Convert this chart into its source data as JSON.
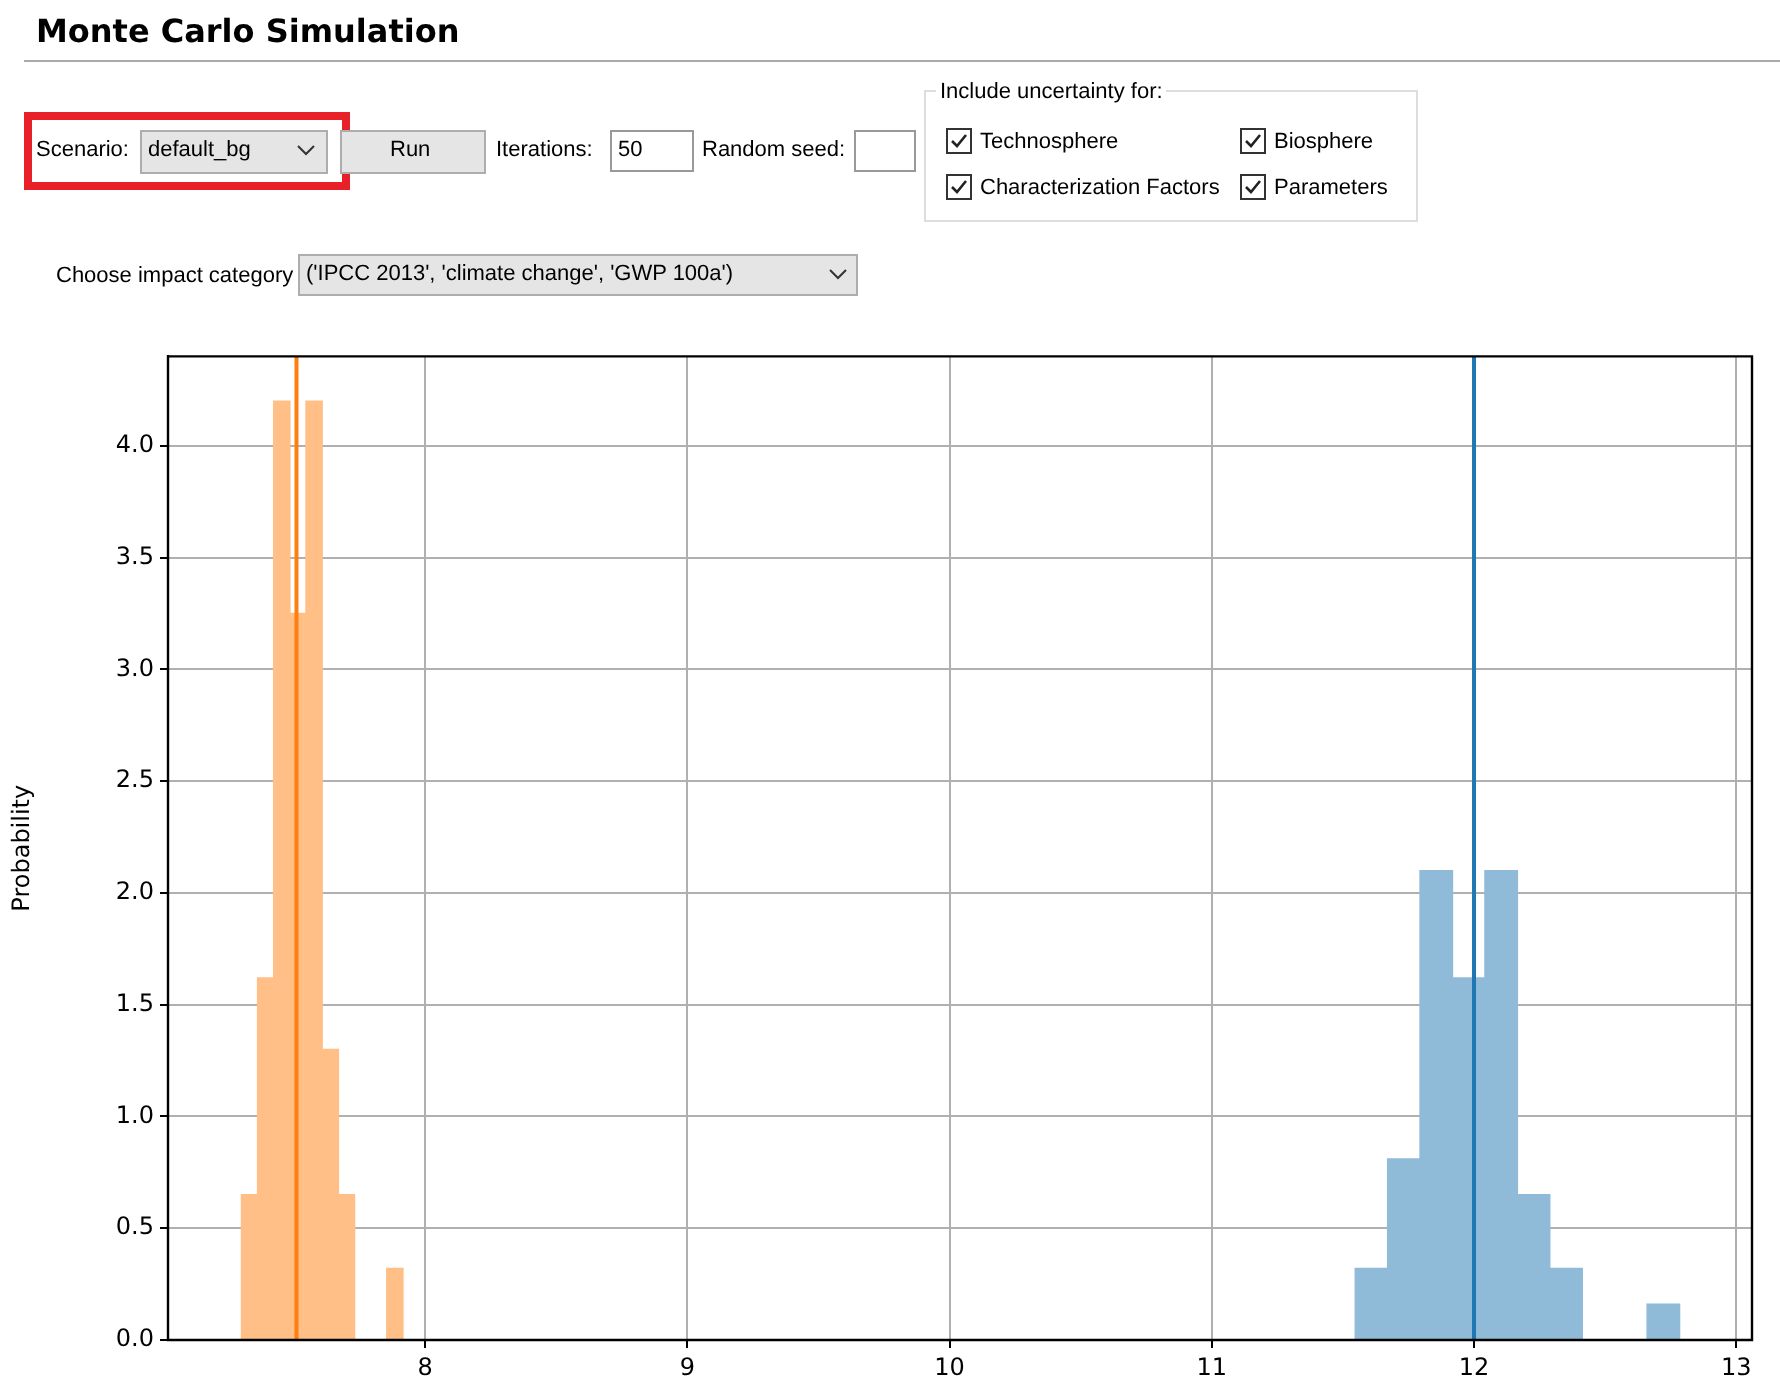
{
  "chart_data": {
    "type": "histogram",
    "title": "Monte Carlo Simulation",
    "ylabel": "Probability",
    "annotations": [
      "Scenario:",
      "default_bg",
      "Run",
      "Iterations:",
      "50",
      "Random seed:",
      "Include uncertainty for:",
      "Technosphere",
      "Biosphere",
      "Characterization Factors",
      "Parameters",
      "Choose impact category",
      "('IPCC 2013', 'climate change', 'GWP 100a')"
    ],
    "bins": [
      7.3,
      7.362,
      7.423,
      7.485,
      7.546,
      7.608,
      7.67,
      7.731,
      7.793,
      7.854,
      7.916,
      11.547,
      11.671,
      11.794,
      11.918,
      12.042,
      12.165,
      12.289,
      12.413,
      12.536,
      12.66,
      12.784
    ],
    "series": [
      {
        "color": "#ffbf86",
        "values": [
          0.65,
          1.62,
          4.2,
          3.25,
          4.2,
          1.3,
          0.65,
          0,
          0,
          0.32,
          null,
          null,
          null,
          null,
          null,
          null,
          null,
          null,
          null,
          null,
          null
        ]
      },
      {
        "color": "#8fbbd9",
        "values": [
          null,
          null,
          null,
          null,
          null,
          null,
          null,
          null,
          null,
          null,
          null,
          0.32,
          0.81,
          2.1,
          1.62,
          2.1,
          0.65,
          0.32,
          0,
          0,
          0.16
        ]
      }
    ],
    "ref_lines": [
      {
        "axis": "x",
        "value": 7.51,
        "color": "#ff7f0e"
      },
      {
        "axis": "x",
        "value": 12.0,
        "color": "#1f77b4"
      }
    ],
    "xlim": [
      7.02,
      13.06
    ],
    "xticks": [
      8,
      9,
      10,
      11,
      12,
      13
    ],
    "ylim": [
      0,
      4.4
    ],
    "yticks": [
      {
        "value": 0,
        "label": "0.0"
      },
      {
        "value": 0.5,
        "label": "0.5"
      },
      {
        "value": 1,
        "label": "1.0"
      },
      {
        "value": 1.5,
        "label": "1.5"
      },
      {
        "value": 2,
        "label": "2.0"
      },
      {
        "value": 2.5,
        "label": "2.5"
      },
      {
        "value": 3,
        "label": "3.0"
      },
      {
        "value": 3.5,
        "label": "3.5"
      },
      {
        "value": 4,
        "label": "4.0"
      }
    ],
    "grid": true
  }
}
